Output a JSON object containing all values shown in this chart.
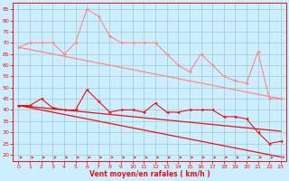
{
  "x": [
    0,
    1,
    2,
    3,
    4,
    5,
    6,
    7,
    8,
    9,
    10,
    11,
    12,
    13,
    14,
    15,
    16,
    17,
    18,
    19,
    20,
    21,
    22,
    23
  ],
  "line1_rafales": [
    68,
    70,
    70,
    70,
    65,
    70,
    85,
    82,
    73,
    70,
    70,
    70,
    70,
    65,
    60,
    57,
    65,
    60,
    55,
    53,
    52,
    66,
    45,
    45
  ],
  "line2_trend_rafales": [
    68,
    67,
    66,
    65,
    64,
    63,
    62,
    61,
    60,
    59,
    58,
    57,
    56,
    55,
    54,
    53,
    52,
    51,
    50,
    49,
    48,
    47,
    46,
    45
  ],
  "line3_moyen": [
    42,
    42,
    45,
    41,
    40,
    40,
    49,
    44,
    39,
    40,
    40,
    39,
    43,
    39,
    39,
    40,
    40,
    40,
    37,
    37,
    36,
    30,
    25,
    26
  ],
  "line4_trend_moyen1": [
    42,
    41.5,
    41,
    40.5,
    40,
    39.5,
    39,
    38.5,
    38,
    37.5,
    37,
    36.5,
    36,
    35.5,
    35,
    34.5,
    34,
    33.5,
    33,
    32.5,
    32,
    31.5,
    31,
    30.5
  ],
  "line5_trend_moyen2": [
    42,
    41,
    40,
    39,
    38,
    37,
    36,
    35,
    34,
    33,
    32,
    31,
    30,
    29,
    28,
    27,
    26,
    25,
    24,
    23,
    22,
    21,
    20,
    19
  ],
  "ylim": [
    17,
    88
  ],
  "yticks": [
    20,
    25,
    30,
    35,
    40,
    45,
    50,
    55,
    60,
    65,
    70,
    75,
    80,
    85
  ],
  "xticks": [
    0,
    1,
    2,
    3,
    4,
    5,
    6,
    7,
    8,
    9,
    10,
    11,
    12,
    13,
    14,
    15,
    16,
    17,
    18,
    19,
    20,
    21,
    22,
    23
  ],
  "xlabel": "Vent moyen/en rafales ( km/h )",
  "bg_color": "#cceeff",
  "grid_color": "#99cccc",
  "line_color_light": "#ff8888",
  "line_color_dark": "#ee1111",
  "marker_size": 2.5
}
